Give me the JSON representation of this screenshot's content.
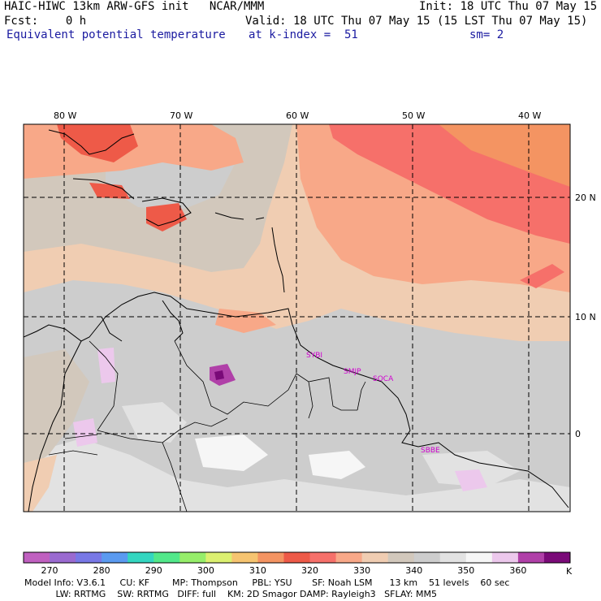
{
  "header": {
    "model_line": "HAIC-HIWC 13km ARW-GFS init   NCAR/MMM",
    "forecast_line": "Fcst:    0 h",
    "field_line": "Equivalent potential temperature",
    "init_line": "Init: 18 UTC Thu 07 May 15",
    "valid_line": "Valid: 18 UTC Thu 07 May 15 (15 LST Thu 07 May 15)",
    "level_line": "at k-index =  51",
    "smooth_line": "sm= 2"
  },
  "map": {
    "lon_labels": [
      "80 W",
      "70 W",
      "60 W",
      "50 W",
      "40 W"
    ],
    "lat_labels": [
      "20 N",
      "10 N",
      "0"
    ],
    "stations": [
      "SYBI",
      "SMJP",
      "SOCA",
      "SBBE"
    ]
  },
  "colorbar": {
    "unit": "K",
    "tick_labels": [
      "270",
      "280",
      "290",
      "300",
      "310",
      "320",
      "330",
      "340",
      "350",
      "360"
    ],
    "colors": [
      "#c060c0",
      "#9a6ad0",
      "#7878e6",
      "#5a9af0",
      "#34d6c0",
      "#52e88a",
      "#96ee6a",
      "#dcf070",
      "#f6c470",
      "#f49462",
      "#ee5a48",
      "#f6706a",
      "#f8a888",
      "#f0cdb2",
      "#d2c8bc",
      "#cdcdcd",
      "#e2e2e2",
      "#f6f6f6",
      "#ecc8ec",
      "#b040a8",
      "#7a0a78"
    ]
  },
  "footer": {
    "line1": "Model Info: V3.6.1     CU: KF        MP: Thompson     PBL: YSU       SF: Noah LSM      13 km    51 levels    60 sec",
    "line2": "           LW: RRTMG    SW: RRTMG   DIFF: full    KM: 2D Smagor DAMP: Rayleigh3   SFLAY: MM5"
  }
}
